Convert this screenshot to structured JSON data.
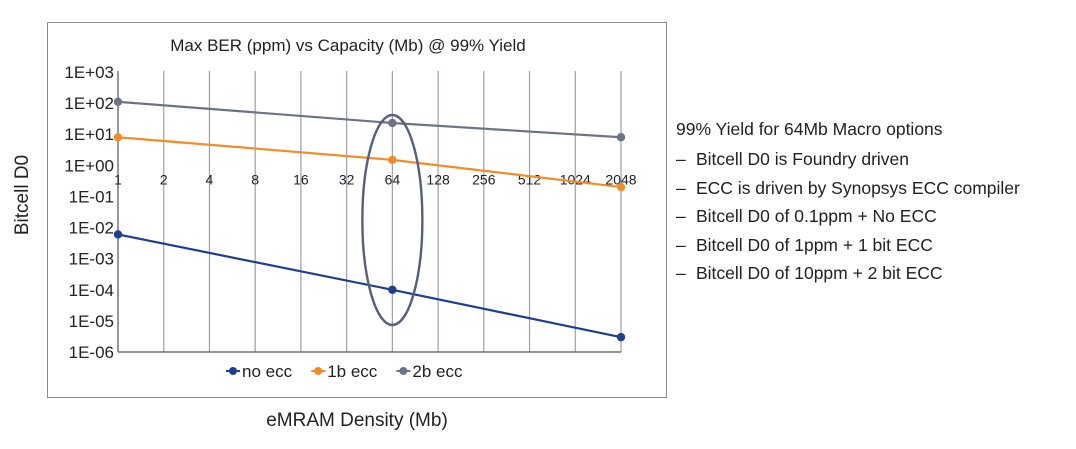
{
  "chart_data": {
    "type": "line",
    "title": "Max BER (ppm) vs Capacity (Mb) @ 99% Yield",
    "xlabel": "eMRAM Density (Mb)",
    "ylabel": "Bitcell D0",
    "y_scale": "log",
    "categories": [
      "1",
      "2",
      "4",
      "8",
      "16",
      "32",
      "64",
      "128",
      "256",
      "512",
      "1024",
      "2048"
    ],
    "ytick_labels": [
      "1E+03",
      "1E+02",
      "1E+01",
      "1E+00",
      "1E-01",
      "1E-02",
      "1E-03",
      "1E-04",
      "1E-05",
      "1E-06"
    ],
    "ylim": [
      1e-06,
      1000
    ],
    "grid": "vertical",
    "legend_position": "bottom",
    "series": [
      {
        "name": "no ecc",
        "color": "#1f3e91",
        "points": [
          {
            "x": "1",
            "y": 0.006
          },
          {
            "x": "64",
            "y": 0.0001
          },
          {
            "x": "2048",
            "y": 3e-06
          }
        ]
      },
      {
        "name": "1b ecc",
        "color": "#f28c28",
        "points": [
          {
            "x": "1",
            "y": 8
          },
          {
            "x": "64",
            "y": 1.5
          },
          {
            "x": "2048",
            "y": 0.2
          }
        ]
      },
      {
        "name": "2b ecc",
        "color": "#6b7387",
        "points": [
          {
            "x": "1",
            "y": 110
          },
          {
            "x": "64",
            "y": 23
          },
          {
            "x": "2048",
            "y": 8
          }
        ]
      }
    ],
    "annotation": "ellipse around 64"
  },
  "notes": {
    "heading": "99% Yield for 64Mb Macro options",
    "bullet_marker": "–",
    "items": [
      "Bitcell D0 is Foundry driven",
      "ECC is driven by Synopsys ECC compiler",
      "Bitcell D0 of 0.1ppm + No ECC",
      "Bitcell D0 of 1ppm + 1 bit ECC",
      "Bitcell D0 of 10ppm + 2 bit ECC"
    ]
  },
  "colors": {
    "grid": "#9a9fae",
    "axis": "#555555",
    "ellipse": "#56607a"
  }
}
